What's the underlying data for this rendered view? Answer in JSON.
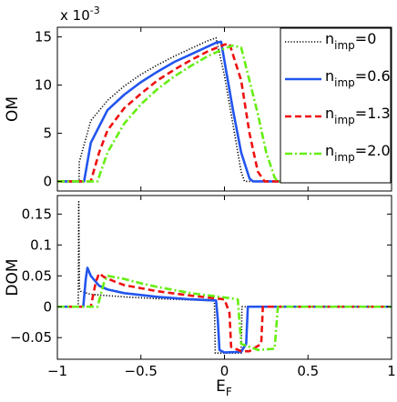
{
  "chart_data": [
    {
      "type": "line",
      "panel": "top",
      "ylabel": "OM",
      "y_exponent_label": "x 10",
      "y_exponent_value": "-3",
      "xlim": [
        -1,
        1
      ],
      "ylim": [
        -1,
        16
      ],
      "y_ticks": [
        "0",
        "5",
        "10",
        "15"
      ],
      "y_tick_values": [
        0,
        5,
        10,
        15
      ],
      "legend_position": "top-right",
      "series": [
        {
          "name_base": "n",
          "name_sub": "imp",
          "name_val": "=0",
          "color": "#000000",
          "style": "dotted",
          "x": [
            -1.0,
            -0.87,
            -0.869,
            -0.8,
            -0.7,
            -0.6,
            -0.5,
            -0.4,
            -0.3,
            -0.2,
            -0.1,
            -0.05,
            0.0,
            0.05,
            0.1,
            0.12,
            0.13,
            1.0
          ],
          "y": [
            0,
            0,
            2.0,
            6.3,
            8.4,
            9.9,
            11.1,
            12.1,
            13.0,
            13.8,
            14.6,
            14.9,
            11.0,
            6.0,
            1.0,
            0,
            0,
            0
          ]
        },
        {
          "name_base": "n",
          "name_sub": "imp",
          "name_val": "=0.6",
          "color": "#2255ee",
          "style": "solid",
          "x": [
            -1.0,
            -0.84,
            -0.8,
            -0.7,
            -0.6,
            -0.5,
            -0.4,
            -0.3,
            -0.2,
            -0.1,
            -0.05,
            -0.02,
            0.05,
            0.1,
            0.15,
            0.17,
            1.0
          ],
          "y": [
            0,
            0,
            4.0,
            7.4,
            9.0,
            10.3,
            11.4,
            12.4,
            13.2,
            14.0,
            14.4,
            14.5,
            7.5,
            3.0,
            0.3,
            0,
            0
          ]
        },
        {
          "name_base": "n",
          "name_sub": "imp",
          "name_val": "=1.3",
          "color": "#ee1111",
          "style": "dashed",
          "x": [
            -1.0,
            -0.8,
            -0.75,
            -0.7,
            -0.6,
            -0.5,
            -0.4,
            -0.3,
            -0.2,
            -0.1,
            0.0,
            0.03,
            0.1,
            0.15,
            0.2,
            0.24,
            1.0
          ],
          "y": [
            0,
            0,
            3.0,
            5.3,
            7.6,
            9.1,
            10.5,
            11.6,
            12.6,
            13.5,
            14.2,
            14.3,
            10.5,
            5.0,
            1.0,
            0,
            0
          ]
        },
        {
          "name_base": "n",
          "name_sub": "imp",
          "name_val": "=2.0",
          "color": "#66ee11",
          "style": "dashdot",
          "x": [
            -1.0,
            -0.76,
            -0.7,
            -0.6,
            -0.5,
            -0.4,
            -0.3,
            -0.2,
            -0.1,
            0.0,
            0.05,
            0.1,
            0.2,
            0.25,
            0.3,
            0.32,
            1.0
          ],
          "y": [
            0,
            0,
            3.0,
            6.0,
            8.0,
            9.6,
            10.9,
            12.0,
            13.0,
            13.8,
            14.1,
            13.9,
            7.0,
            3.0,
            0.4,
            0,
            0
          ]
        }
      ]
    },
    {
      "type": "line",
      "panel": "bottom",
      "xlabel_base": "E",
      "xlabel_sub": "F",
      "ylabel": "DOM",
      "xlim": [
        -1,
        1
      ],
      "ylim": [
        -0.085,
        0.18
      ],
      "x_ticks": [
        "−1",
        "−0.5",
        "0",
        "0.5",
        "1"
      ],
      "x_tick_values": [
        -1,
        -0.5,
        0,
        0.5,
        1
      ],
      "y_ticks": [
        "−0.05",
        "0",
        "0.05",
        "0.1",
        "0.15"
      ],
      "y_tick_values": [
        -0.05,
        0,
        0.05,
        0.1,
        0.15
      ],
      "series": [
        {
          "color": "#000000",
          "style": "dotted",
          "x": [
            -1.0,
            -0.875,
            -0.872,
            -0.868,
            -0.86,
            -0.8,
            -0.7,
            -0.6,
            -0.4,
            -0.2,
            -0.1,
            -0.06,
            -0.055,
            0.1,
            0.105,
            0.2,
            1.0
          ],
          "y": [
            0,
            0,
            0.17,
            0.03,
            0.025,
            0.02,
            0.018,
            0.016,
            0.013,
            0.011,
            0.01,
            0.01,
            -0.075,
            -0.075,
            0,
            0,
            0
          ]
        },
        {
          "color": "#2255ee",
          "style": "solid",
          "x": [
            -1.0,
            -0.845,
            -0.83,
            -0.82,
            -0.8,
            -0.75,
            -0.7,
            -0.6,
            -0.4,
            -0.2,
            -0.05,
            -0.04,
            -0.03,
            0.0,
            0.1,
            0.13,
            0.14,
            0.2,
            1.0
          ],
          "y": [
            0,
            0,
            0.045,
            0.063,
            0.05,
            0.034,
            0.028,
            0.022,
            0.016,
            0.012,
            0.01,
            -0.02,
            -0.07,
            -0.074,
            -0.073,
            -0.06,
            0,
            0,
            0
          ]
        },
        {
          "color": "#ee1111",
          "style": "dashed",
          "x": [
            -1.0,
            -0.8,
            -0.77,
            -0.75,
            -0.72,
            -0.65,
            -0.6,
            -0.4,
            -0.2,
            0.0,
            0.03,
            0.04,
            0.1,
            0.15,
            0.22,
            0.23,
            0.3,
            1.0
          ],
          "y": [
            0,
            0,
            0.04,
            0.054,
            0.048,
            0.04,
            0.035,
            0.025,
            0.018,
            0.012,
            -0.01,
            -0.065,
            -0.072,
            -0.072,
            -0.06,
            0,
            0,
            0
          ]
        },
        {
          "color": "#66ee11",
          "style": "dashdot",
          "x": [
            -1.0,
            -0.76,
            -0.72,
            -0.7,
            -0.6,
            -0.5,
            -0.4,
            -0.2,
            0.0,
            0.08,
            0.1,
            0.2,
            0.3,
            0.32,
            0.4,
            1.0
          ],
          "y": [
            0,
            0,
            0.04,
            0.05,
            0.045,
            0.038,
            0.032,
            0.022,
            0.015,
            0.012,
            -0.06,
            -0.07,
            -0.068,
            0,
            0,
            0
          ]
        }
      ]
    }
  ]
}
